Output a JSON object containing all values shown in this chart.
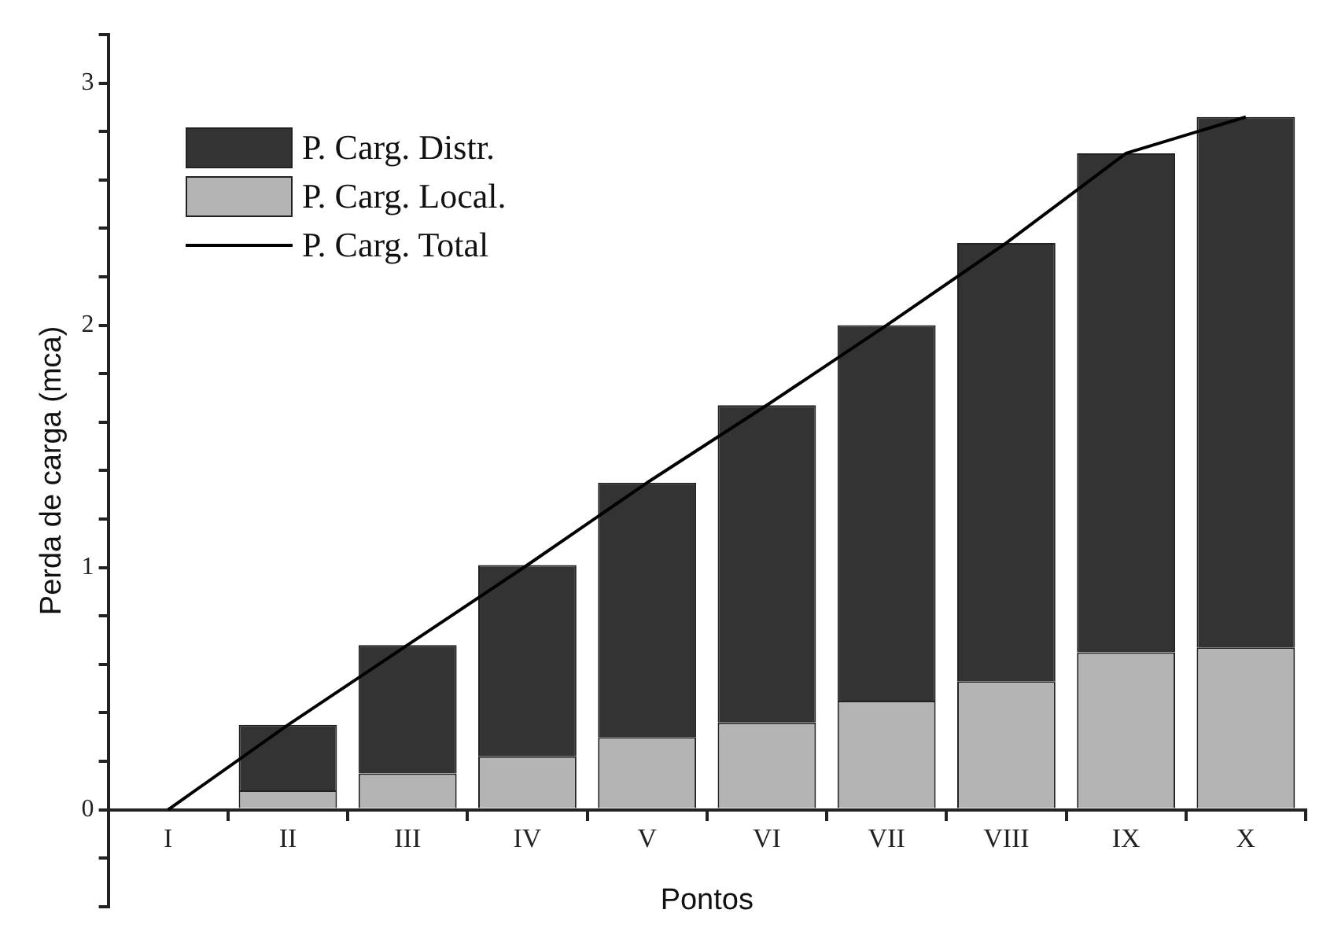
{
  "chart_data": {
    "type": "bar",
    "xlabel": "Pontos",
    "ylabel": "Perda de carga (mca)",
    "categories": [
      "I",
      "II",
      "III",
      "IV",
      "V",
      "VI",
      "VII",
      "VIII",
      "IX",
      "X"
    ],
    "stacked": true,
    "series": [
      {
        "name": "P. Carg. Local.",
        "color": "#b4b4b4",
        "values": [
          0,
          0.08,
          0.15,
          0.22,
          0.3,
          0.36,
          0.45,
          0.53,
          0.65,
          0.67
        ]
      },
      {
        "name": "P. Carg. Distr.",
        "color": "#333333",
        "values": [
          0,
          0.27,
          0.53,
          0.79,
          1.05,
          1.31,
          1.55,
          1.81,
          2.06,
          2.19
        ]
      },
      {
        "name": "P. Carg. Total",
        "type": "line",
        "color": "#000000",
        "values": [
          0,
          0.35,
          0.68,
          1.01,
          1.35,
          1.67,
          2.0,
          2.34,
          2.71,
          2.86
        ]
      }
    ],
    "ylim": [
      -0.4,
      3.2
    ],
    "yticks": [
      {
        "value": -0.4,
        "label": null
      },
      {
        "value": -0.2,
        "label": null
      },
      0,
      {
        "value": 0.2,
        "label": null
      },
      {
        "value": 0.4,
        "label": null
      },
      {
        "value": 0.6,
        "label": null
      },
      {
        "value": 0.8,
        "label": null
      },
      1,
      {
        "value": 1.2,
        "label": null
      },
      {
        "value": 1.4,
        "label": null
      },
      {
        "value": 1.6,
        "label": null
      },
      {
        "value": 1.8,
        "label": null
      },
      2,
      {
        "value": 2.2,
        "label": null
      },
      {
        "value": 2.4,
        "label": null
      },
      {
        "value": 2.6,
        "label": null
      },
      {
        "value": 2.8,
        "label": null
      },
      3,
      {
        "value": 3.2,
        "label": null
      }
    ],
    "grid": false,
    "legend": "top left",
    "marker": "none",
    "line_style": "solid"
  }
}
